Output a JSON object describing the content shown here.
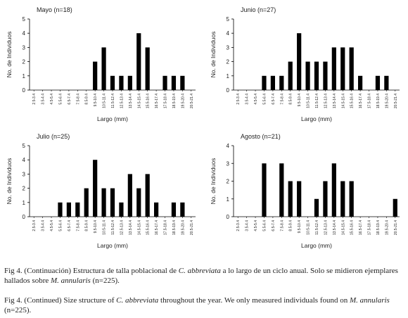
{
  "chart_data": [
    {
      "type": "bar",
      "title": "Mayo (n=18)",
      "x_label": "Largo (mm)",
      "y_label": "No. de Individuos",
      "color": "#000000",
      "categories": [
        "2.5-3.4",
        "3.5-4.4",
        "4.5-5.4",
        "5.5-6.4",
        "6.5-7.4",
        "7.5-8.4",
        "8.5-9.4",
        "9.5-10.4",
        "10.5-11.4",
        "11.5-12.4",
        "12.5-13.4",
        "13.5-14.4",
        "14.5-15.4",
        "15.5-16.4",
        "16.5-17.4",
        "17.5-18.4",
        "18.5-19.4",
        "19.5-20.4",
        "20.5-21.4"
      ],
      "values": [
        0,
        0,
        0,
        0,
        0,
        0,
        0,
        2,
        3,
        1,
        1,
        1,
        4,
        3,
        0,
        1,
        1,
        1,
        0
      ],
      "ylim": [
        0,
        5
      ],
      "yticks": [
        0,
        1,
        2,
        3,
        4,
        5
      ]
    },
    {
      "type": "bar",
      "title": "Junio (n=27)",
      "x_label": "Largo (mm)",
      "y_label": "No. de Individuos",
      "color": "#000000",
      "categories": [
        "2.5-3.4",
        "3.5-4.4",
        "4.5-5.4",
        "5.5-6.4",
        "6.5-7.4",
        "7.5-8.4",
        "8.5-9.4",
        "9.5-10.4",
        "10.5-11.4",
        "11.5-12.4",
        "12.5-13.4",
        "13.5-14.4",
        "14.5-15.4",
        "15.5-16.4",
        "16.5-17.4",
        "17.5-18.4",
        "18.5-19.4",
        "19.5-20.4",
        "20.5-21.4"
      ],
      "values": [
        0,
        0,
        0,
        1,
        1,
        1,
        2,
        4,
        2,
        2,
        2,
        3,
        3,
        3,
        1,
        0,
        1,
        1,
        0
      ],
      "ylim": [
        0,
        5
      ],
      "yticks": [
        0,
        1,
        2,
        3,
        4,
        5
      ]
    },
    {
      "type": "bar",
      "title": "Julio (n=25)",
      "x_label": "Largo (mm)",
      "y_label": "No. de Individuos",
      "color": "#000000",
      "categories": [
        "2.5-3.4",
        "3.5-4.4",
        "4.5-5.4",
        "5.5-6.4",
        "6.5-7.4",
        "7.5-8.4",
        "8.5-9.4",
        "9.5-10.4",
        "10.5-11.4",
        "11.5-12.4",
        "12.5-13.4",
        "13.5-14.4",
        "14.5-15.4",
        "15.5-16.4",
        "16.5-17.4",
        "17.5-18.4",
        "18.5-19.4",
        "19.5-20.4",
        "20.5-21.4"
      ],
      "values": [
        0,
        0,
        0,
        1,
        1,
        1,
        2,
        4,
        2,
        2,
        1,
        3,
        2,
        3,
        1,
        0,
        1,
        1,
        0
      ],
      "ylim": [
        0,
        5
      ],
      "yticks": [
        0,
        1,
        2,
        3,
        4,
        5
      ]
    },
    {
      "type": "bar",
      "title": "Agosto (n=21)",
      "x_label": "Largo (mm)",
      "y_label": "No. de Individuos",
      "color": "#000000",
      "categories": [
        "2.5-3.4",
        "3.5-4.4",
        "4.5-5.4",
        "5.5-6.4",
        "6.5-7.4",
        "7.5-8.4",
        "8.5-9.4",
        "9.5-10.4",
        "10.5-11.4",
        "11.5-12.4",
        "12.5-13.4",
        "13.5-14.4",
        "14.5-15.4",
        "15.5-16.4",
        "16.5-17.4",
        "17.5-18.4",
        "18.5-19.4",
        "19.5-20.4",
        "20.5-21.4"
      ],
      "values": [
        0,
        0,
        0,
        3,
        0,
        3,
        2,
        2,
        0,
        1,
        2,
        3,
        2,
        2,
        0,
        0,
        0,
        0,
        1
      ],
      "ylim": [
        0,
        4
      ],
      "yticks": [
        0,
        1,
        2,
        3,
        4
      ]
    }
  ],
  "captions": [
    [
      "Fig 4. (Continuación) Estructura de talla poblacional de ",
      "C. abbreviata",
      " a lo largo de un ciclo anual. Solo se midieron ejemplares hallados sobre ",
      "M. annularis",
      " (n=225)."
    ],
    [
      "Fig 4. (Continued) Size structure of ",
      "C. abbreviata",
      " throughout the year. We only measured individuals found on ",
      "M. annularis",
      " (n=225)."
    ]
  ]
}
